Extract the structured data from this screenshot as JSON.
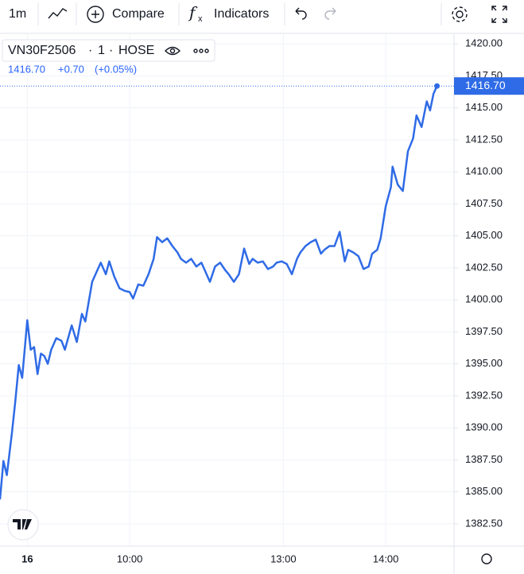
{
  "toolbar": {
    "interval": "1m",
    "compare": "Compare",
    "indicators": "Indicators"
  },
  "legend": {
    "symbol": "VN30F2506",
    "interval": "1",
    "exchange": "HOSE",
    "last": "1416.70",
    "change": "+0.70",
    "change_pct": "(+0.05%)"
  },
  "chart_data": {
    "type": "line",
    "color": "#2f6be6",
    "grid": true,
    "x": [
      -16,
      -14,
      -12,
      -9,
      -7,
      -5,
      -3,
      0,
      2,
      4,
      6,
      8,
      10,
      12,
      14,
      17,
      20,
      22,
      26,
      29,
      32,
      34,
      38,
      40,
      43,
      46,
      48,
      51,
      54,
      57,
      60,
      62,
      65,
      68,
      71,
      74,
      76,
      79,
      82,
      85,
      88,
      90,
      93,
      96,
      99,
      102,
      104,
      107,
      110,
      113,
      116,
      118,
      121,
      124,
      127,
      130,
      132,
      135,
      138,
      141,
      144,
      146,
      149,
      152,
      155,
      158,
      160,
      163,
      166,
      169,
      172,
      174,
      177,
      180,
      183,
      186,
      188,
      191,
      194,
      197,
      200,
      202,
      205,
      207,
      210,
      213,
      214,
      217,
      220,
      223,
      226,
      228,
      231,
      234,
      236,
      238,
      240
    ],
    "values": [
      1384.4,
      1387.4,
      1386.3,
      1389.6,
      1392.1,
      1394.9,
      1393.9,
      1398.4,
      1396.1,
      1396.3,
      1394.2,
      1395.8,
      1395.6,
      1395.0,
      1396.1,
      1397.0,
      1396.8,
      1396.1,
      1398.0,
      1396.7,
      1398.9,
      1398.3,
      1401.4,
      1402.0,
      1402.9,
      1402.0,
      1403.0,
      1401.8,
      1400.9,
      1400.7,
      1400.6,
      1400.1,
      1401.2,
      1401.1,
      1402.0,
      1403.2,
      1404.9,
      1404.5,
      1404.8,
      1404.2,
      1403.7,
      1403.2,
      1402.9,
      1403.2,
      1402.6,
      1402.9,
      1402.3,
      1401.4,
      1402.6,
      1402.9,
      1402.3,
      1402.0,
      1401.4,
      1402.0,
      1404.0,
      1402.8,
      1403.2,
      1402.9,
      1403.0,
      1402.4,
      1402.6,
      1402.9,
      1403.0,
      1402.8,
      1402.0,
      1403.2,
      1403.7,
      1404.2,
      1404.5,
      1404.7,
      1403.6,
      1403.9,
      1404.2,
      1404.2,
      1405.3,
      1403.0,
      1403.9,
      1403.7,
      1403.4,
      1402.4,
      1402.6,
      1403.6,
      1403.9,
      1404.8,
      1407.3,
      1408.8,
      1410.4,
      1409.0,
      1408.5,
      1411.6,
      1412.6,
      1414.4,
      1413.5,
      1415.5,
      1414.8,
      1416.1,
      1416.7
    ],
    "value_labels": [
      null,
      null,
      null,
      null,
      null,
      null,
      null,
      null,
      null,
      null,
      null,
      null,
      null,
      null,
      null,
      null,
      null,
      null,
      null,
      null,
      null,
      null,
      null,
      null,
      null,
      null,
      null,
      null,
      null,
      null,
      null,
      null,
      null,
      null,
      null,
      null,
      null,
      null,
      null,
      null,
      null,
      null,
      null,
      null,
      null,
      null,
      null,
      null,
      null,
      null,
      null,
      null,
      null,
      null,
      null,
      null,
      null,
      null,
      null,
      null,
      null,
      null,
      null,
      null,
      null,
      null,
      null,
      null,
      null,
      null,
      null,
      null,
      null,
      null,
      null,
      null,
      null,
      null,
      null,
      null,
      null,
      null,
      null,
      null,
      null,
      null,
      null,
      null,
      null,
      null,
      null,
      null,
      null,
      null,
      null,
      null,
      "1416.70"
    ],
    "xlim": [
      -16,
      250
    ],
    "xticks": [
      {
        "value": 0,
        "label": "16"
      },
      {
        "value": 60,
        "label": "10:00"
      },
      {
        "value": 150,
        "label": "13:00"
      },
      {
        "value": 210,
        "label": "14:00"
      }
    ],
    "ylim": [
      1380.75,
      1420.75
    ],
    "yticks": [
      {
        "value": 1382.5,
        "label": "1382.50"
      },
      {
        "value": 1385,
        "label": "1385.00"
      },
      {
        "value": 1387.5,
        "label": "1387.50"
      },
      {
        "value": 1390,
        "label": "1390.00"
      },
      {
        "value": 1392.5,
        "label": "1392.50"
      },
      {
        "value": 1395,
        "label": "1395.00"
      },
      {
        "value": 1397.5,
        "label": "1397.50"
      },
      {
        "value": 1400,
        "label": "1400.00"
      },
      {
        "value": 1402.5,
        "label": "1402.50"
      },
      {
        "value": 1405,
        "label": "1405.00"
      },
      {
        "value": 1407.5,
        "label": "1407.50"
      },
      {
        "value": 1410,
        "label": "1410.00"
      },
      {
        "value": 1412.5,
        "label": "1412.50"
      },
      {
        "value": 1415,
        "label": "1415.00"
      },
      {
        "value": 1417.5,
        "label": "1417.50"
      },
      {
        "value": 1420,
        "label": "1420.00"
      }
    ]
  }
}
